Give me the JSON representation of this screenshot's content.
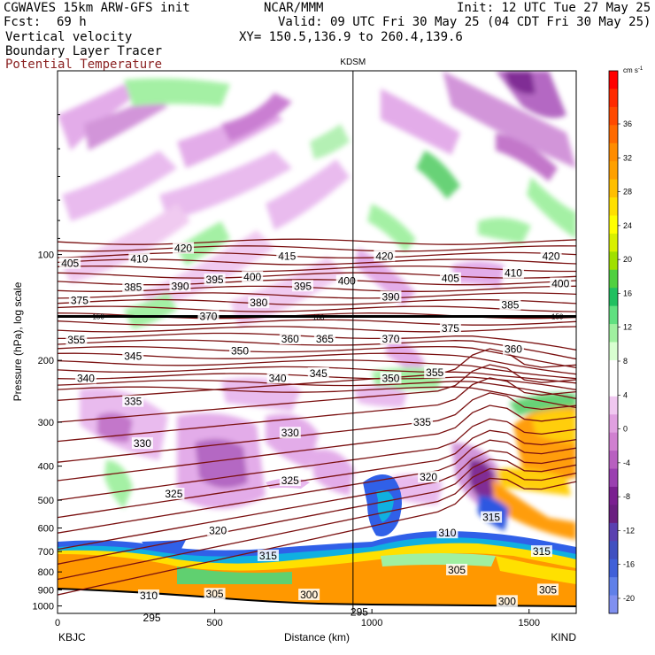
{
  "header": {
    "model": "CGWAVES 15km ARW-GFS init",
    "center": "NCAR/MMM",
    "init": "Init: 12 UTC Tue 27 May 25",
    "fcst_label": "Fcst:",
    "fcst_value": "69 h",
    "valid": "Valid: 09 UTC Fri 30 May 25 (04 CDT Fri 30 May 25)",
    "field1": "Vertical velocity",
    "xy": "XY= 150.5,136.9 to 260.4,139.6",
    "field2": "Boundary Layer Tracer",
    "field3": "Potential Temperature",
    "field3_color": "#8b2222"
  },
  "chart_data": {
    "type": "heatmap",
    "ylabel": "Pressure (hPa), log scale",
    "xlabel": "Distance (km)",
    "log_y": true,
    "xlim": [
      0,
      1650
    ],
    "ylim": [
      1050,
      30
    ],
    "x_ticks": [
      "0",
      "500",
      "1000",
      "1500"
    ],
    "x_tick_values": [
      0,
      500,
      1000,
      1500
    ],
    "y_ticks": [
      "100",
      "200",
      "300",
      "400",
      "500",
      "600",
      "700",
      "800",
      "900",
      "1000"
    ],
    "y_tick_values": [
      100,
      200,
      300,
      400,
      500,
      600,
      700,
      800,
      900,
      1000
    ],
    "endpoints": {
      "left": "KBJC",
      "right": "KIND"
    },
    "marker_station": {
      "name": "KDSM",
      "x": 940
    },
    "colorbar": {
      "units": "cm s",
      "units_exp": "-1",
      "labels": [
        "36",
        "32",
        "28",
        "24",
        "20",
        "16",
        "12",
        "8",
        "4",
        "0",
        "-4",
        "-8",
        "-12",
        "-16",
        "-20"
      ],
      "colors": [
        "#ff0000",
        "#ff2a00",
        "#ff4a00",
        "#ff6a00",
        "#ff8c00",
        "#ffa000",
        "#ffbf00",
        "#ffe000",
        "#ffff00",
        "#d8f000",
        "#a0e000",
        "#50d040",
        "#20c060",
        "#60e080",
        "#a0f0a0",
        "#d8ffd0",
        "#ffffff",
        "#ffffff",
        "#f0c8f0",
        "#e0a0e0",
        "#d080d0",
        "#b860c0",
        "#9a40b0",
        "#7a2090",
        "#6a2080",
        "#5a40b0",
        "#4050c0",
        "#4060d8",
        "#6080e8",
        "#8090f0"
      ]
    },
    "theta_labels": [
      {
        "text": "405",
        "x": 40,
        "p": 106
      },
      {
        "text": "410",
        "x": 260,
        "p": 103
      },
      {
        "text": "420",
        "x": 400,
        "p": 96
      },
      {
        "text": "415",
        "x": 730,
        "p": 101
      },
      {
        "text": "420",
        "x": 1040,
        "p": 101
      },
      {
        "text": "420",
        "x": 1570,
        "p": 101
      },
      {
        "text": "385",
        "x": 240,
        "p": 124
      },
      {
        "text": "390",
        "x": 390,
        "p": 123
      },
      {
        "text": "395",
        "x": 500,
        "p": 118
      },
      {
        "text": "400",
        "x": 620,
        "p": 116
      },
      {
        "text": "395",
        "x": 780,
        "p": 123
      },
      {
        "text": "400",
        "x": 920,
        "p": 119
      },
      {
        "text": "405",
        "x": 1250,
        "p": 117
      },
      {
        "text": "410",
        "x": 1450,
        "p": 113
      },
      {
        "text": "400",
        "x": 1600,
        "p": 121
      },
      {
        "text": "375",
        "x": 70,
        "p": 135
      },
      {
        "text": "390",
        "x": 1060,
        "p": 132
      },
      {
        "text": "385",
        "x": 1440,
        "p": 139
      },
      {
        "text": "380",
        "x": 640,
        "p": 137
      },
      {
        "text": "370",
        "x": 480,
        "p": 150
      },
      {
        "text": "375",
        "x": 1250,
        "p": 162
      },
      {
        "text": "355",
        "x": 60,
        "p": 175
      },
      {
        "text": "345",
        "x": 240,
        "p": 195
      },
      {
        "text": "350",
        "x": 580,
        "p": 188
      },
      {
        "text": "360",
        "x": 740,
        "p": 174
      },
      {
        "text": "365",
        "x": 850,
        "p": 174
      },
      {
        "text": "370",
        "x": 1060,
        "p": 174
      },
      {
        "text": "360",
        "x": 1450,
        "p": 186
      },
      {
        "text": "340",
        "x": 90,
        "p": 225
      },
      {
        "text": "340",
        "x": 700,
        "p": 225
      },
      {
        "text": "345",
        "x": 830,
        "p": 218
      },
      {
        "text": "350",
        "x": 1060,
        "p": 225
      },
      {
        "text": "355",
        "x": 1200,
        "p": 217
      },
      {
        "text": "335",
        "x": 240,
        "p": 262
      },
      {
        "text": "335",
        "x": 1160,
        "p": 300
      },
      {
        "text": "330",
        "x": 270,
        "p": 345
      },
      {
        "text": "330",
        "x": 740,
        "p": 322
      },
      {
        "text": "325",
        "x": 370,
        "p": 480
      },
      {
        "text": "325",
        "x": 740,
        "p": 440
      },
      {
        "text": "320",
        "x": 510,
        "p": 610
      },
      {
        "text": "320",
        "x": 1180,
        "p": 430
      },
      {
        "text": "315",
        "x": 670,
        "p": 720
      },
      {
        "text": "315",
        "x": 1380,
        "p": 560
      },
      {
        "text": "315",
        "x": 1540,
        "p": 700
      },
      {
        "text": "310",
        "x": 1240,
        "p": 620
      },
      {
        "text": "310",
        "x": 290,
        "p": 935
      },
      {
        "text": "305",
        "x": 500,
        "p": 925
      },
      {
        "text": "305",
        "x": 1270,
        "p": 790
      },
      {
        "text": "305",
        "x": 1560,
        "p": 900
      },
      {
        "text": "300",
        "x": 800,
        "p": 930
      },
      {
        "text": "300",
        "x": 1430,
        "p": 970
      },
      {
        "text": "295",
        "x": 300,
        "p": 1080
      },
      {
        "text": "295",
        "x": 960,
        "p": 1040
      }
    ],
    "pressure_level_labels": [
      {
        "text": "150",
        "x": 130,
        "p": 150
      },
      {
        "text": "180",
        "x": 830,
        "p": 151
      },
      {
        "text": "150",
        "x": 1590,
        "p": 150
      }
    ]
  }
}
